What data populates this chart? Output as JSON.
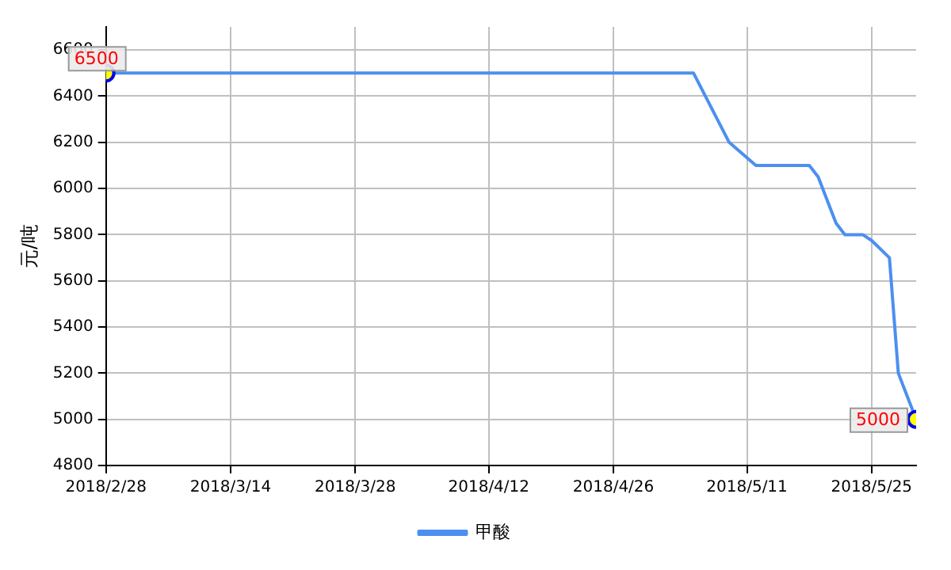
{
  "chart_data": {
    "type": "line",
    "ylabel": "元/吨",
    "x": [
      "2018-02-28",
      "2018-05-05",
      "2018-05-09",
      "2018-05-12",
      "2018-05-18",
      "2018-05-19",
      "2018-05-21",
      "2018-05-22",
      "2018-05-24",
      "2018-05-25",
      "2018-05-27",
      "2018-05-28",
      "2018-05-30"
    ],
    "series": [
      {
        "name": "甲酸",
        "color": "#4c8ff0",
        "values": [
          6500,
          6500,
          6200,
          6100,
          6100,
          6050,
          5850,
          5800,
          5800,
          5775,
          5700,
          5200,
          5000
        ],
        "value_labels": [
          "6500",
          null,
          null,
          null,
          null,
          null,
          null,
          null,
          null,
          null,
          null,
          null,
          "5000"
        ]
      }
    ],
    "xlim": [
      "2018-02-28",
      "2018-05-30"
    ],
    "xticks": [
      {
        "value": "2018-02-28",
        "label": "2018/2/28"
      },
      {
        "value": "2018-03-14",
        "label": "2018/3/14"
      },
      {
        "value": "2018-03-28",
        "label": "2018/3/28"
      },
      {
        "value": "2018-04-12",
        "label": "2018/4/12"
      },
      {
        "value": "2018-04-26",
        "label": "2018/4/26"
      },
      {
        "value": "2018-05-11",
        "label": "2018/5/11"
      },
      {
        "value": "2018-05-25",
        "label": "2018/5/25"
      }
    ],
    "ylim": [
      4800,
      6700
    ],
    "yticks": [
      4800,
      5000,
      5200,
      5400,
      5600,
      5800,
      6000,
      6200,
      6400,
      6600
    ],
    "grid": true,
    "legend": "bottom",
    "line_style": "solid"
  }
}
